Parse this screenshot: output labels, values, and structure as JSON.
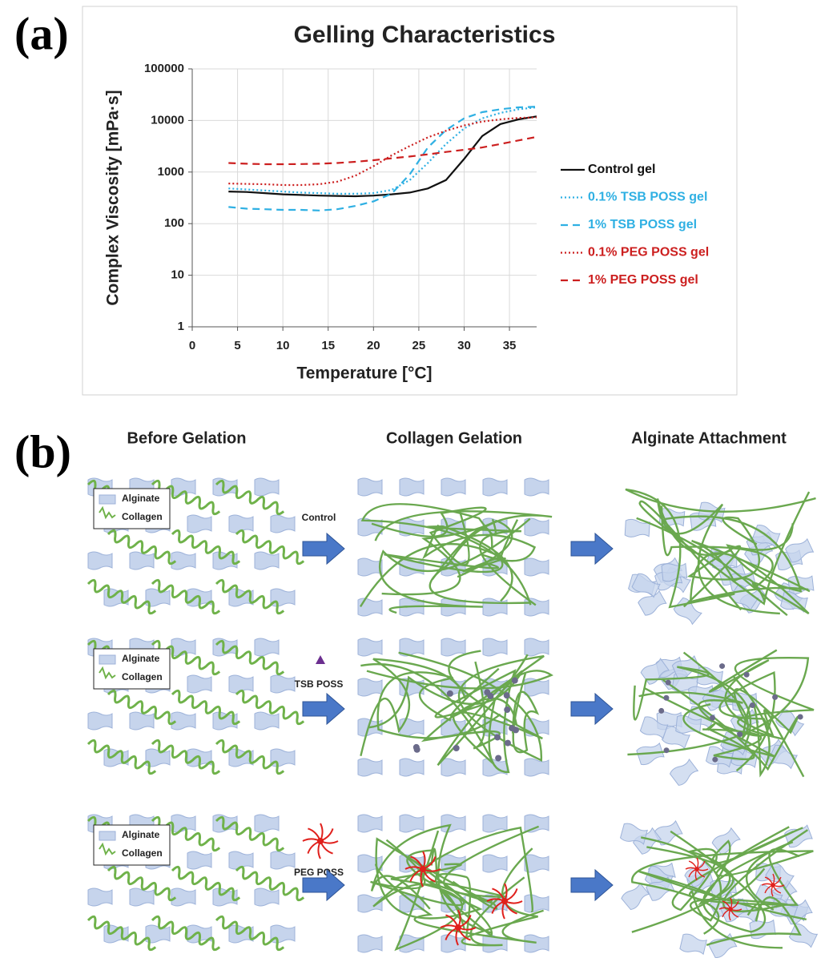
{
  "panels": [
    "(a)",
    "(b)"
  ],
  "chart_data": {
    "type": "line",
    "title": "Gelling Characteristics",
    "x_label": "Temperature [°C]",
    "y_label": "Complex Viscosity [mPa·s]",
    "log_y": true,
    "grid": true,
    "legend": "right",
    "xlim": [
      0,
      38
    ],
    "xticks": [
      0,
      5,
      10,
      15,
      20,
      25,
      30,
      35
    ],
    "ylim": [
      1,
      100000
    ],
    "yticks": [
      1,
      10,
      100,
      1000,
      10000,
      100000
    ],
    "x": [
      4,
      6,
      8,
      10,
      12,
      14,
      16,
      18,
      20,
      22,
      24,
      26,
      28,
      30,
      32,
      34,
      36,
      38
    ],
    "series": [
      {
        "name": "Control gel",
        "color": "#111111",
        "dash": "solid",
        "values": [
          420,
          410,
          390,
          370,
          360,
          350,
          345,
          340,
          350,
          370,
          400,
          480,
          700,
          1800,
          5000,
          8500,
          10500,
          12000
        ]
      },
      {
        "name": "0.1% TSB POSS gel",
        "color": "#2fb0e3",
        "dash": "dotted",
        "values": [
          480,
          460,
          440,
          420,
          400,
          390,
          380,
          380,
          390,
          450,
          700,
          1500,
          3500,
          7000,
          11000,
          14000,
          16500,
          18000
        ]
      },
      {
        "name": "1% TSB POSS gel",
        "color": "#2fb0e3",
        "dash": "dashed",
        "values": [
          210,
          195,
          190,
          185,
          185,
          180,
          190,
          220,
          270,
          380,
          900,
          3000,
          6500,
          11000,
          14500,
          16500,
          18000,
          18500
        ]
      },
      {
        "name": "0.1% PEG POSS gel",
        "color": "#cc1f1f",
        "dash": "dotted",
        "values": [
          600,
          590,
          580,
          560,
          560,
          580,
          650,
          850,
          1300,
          2100,
          3200,
          4700,
          6300,
          8000,
          9500,
          10500,
          11200,
          11500
        ]
      },
      {
        "name": "1% PEG POSS gel",
        "color": "#cc1f1f",
        "dash": "dashed",
        "values": [
          1500,
          1450,
          1420,
          1420,
          1430,
          1450,
          1500,
          1580,
          1700,
          1850,
          2000,
          2200,
          2450,
          2700,
          3000,
          3500,
          4100,
          4800
        ]
      }
    ]
  },
  "diagram": {
    "columns": [
      "Before Gelation",
      "Collagen Gelation",
      "Alginate Attachment"
    ],
    "rows": [
      {
        "legend": [
          "Alginate",
          "Collagen"
        ],
        "reagent": "Control"
      },
      {
        "legend": [
          "Alginate",
          "Collagen"
        ],
        "reagent": "TSB POSS"
      },
      {
        "legend": [
          "Alginate",
          "Collagen"
        ],
        "reagent": "PEG POSS"
      }
    ]
  }
}
